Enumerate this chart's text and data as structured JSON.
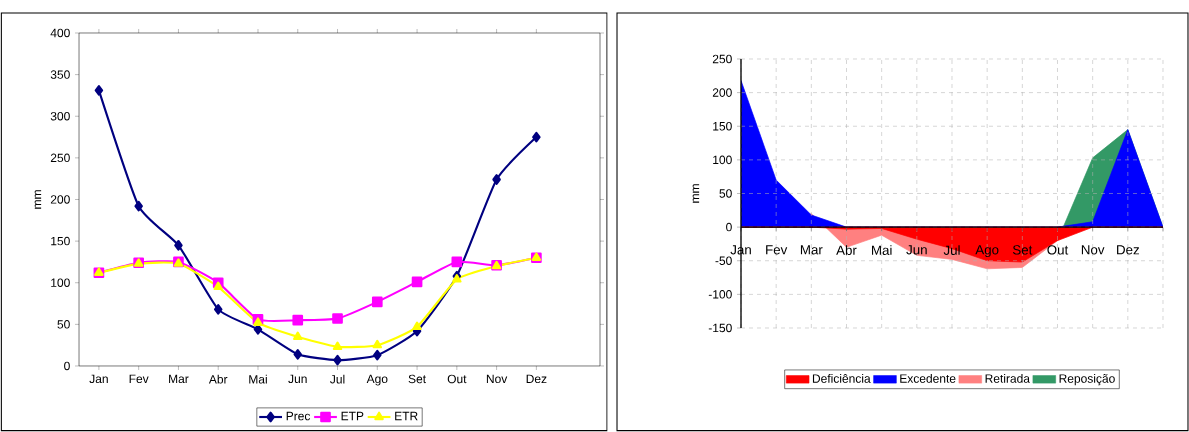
{
  "chart_data": [
    {
      "type": "line",
      "ylabel": "mm",
      "categories": [
        "Jan",
        "Fev",
        "Mar",
        "Abr",
        "Mai",
        "Jun",
        "Jul",
        "Ago",
        "Set",
        "Out",
        "Nov",
        "Dez"
      ],
      "ylim": [
        0,
        400
      ],
      "yticks": [
        0,
        50,
        100,
        150,
        200,
        250,
        300,
        350,
        400
      ],
      "legend": "bottom",
      "grid": false,
      "series": [
        {
          "name": "Prec",
          "color": "#000080",
          "marker": "diamond",
          "values": [
            331,
            192,
            145,
            68,
            44,
            14,
            7,
            13,
            42,
            108,
            224,
            275
          ]
        },
        {
          "name": "ETP",
          "color": "#ff00ff",
          "marker": "square",
          "values": [
            112,
            124,
            125,
            100,
            56,
            55,
            57,
            77,
            101,
            125,
            121,
            130
          ]
        },
        {
          "name": "ETR",
          "color": "#ffff00",
          "marker": "triangle",
          "values": [
            112,
            123,
            123,
            95,
            52,
            35,
            23,
            25,
            47,
            104,
            120,
            130
          ]
        }
      ]
    },
    {
      "type": "area",
      "ylabel": "mm",
      "categories": [
        "Jan",
        "Fev",
        "Mar",
        "Abr",
        "Mai",
        "Jun",
        "Jul",
        "Ago",
        "Set",
        "Out",
        "Nov",
        "Dez",
        null
      ],
      "ylim": [
        -150,
        250
      ],
      "yticks": [
        -150,
        -100,
        -50,
        0,
        50,
        100,
        150,
        200,
        250
      ],
      "legend": "bottom",
      "grid": true,
      "series": [
        {
          "name": "Deficiência",
          "color": "#ff0000",
          "values": [
            0,
            0,
            0,
            -3,
            -2,
            -18,
            -32,
            -50,
            -52,
            -20,
            0,
            0,
            0
          ]
        },
        {
          "name": "Excedente",
          "color": "#0000ff",
          "values": [
            218,
            70,
            18,
            0,
            0,
            0,
            0,
            0,
            0,
            0,
            8,
            145,
            0
          ]
        },
        {
          "name": "Retirada",
          "color": "#ff8080",
          "values": [
            0,
            0,
            20,
            -30,
            -12,
            -42,
            -48,
            -62,
            -60,
            -20,
            0,
            0,
            0
          ]
        },
        {
          "name": "Reposição",
          "color": "#339966",
          "values": [
            0,
            0,
            0,
            0,
            0,
            0,
            0,
            0,
            0,
            -20,
            103,
            145,
            0
          ]
        }
      ]
    }
  ]
}
